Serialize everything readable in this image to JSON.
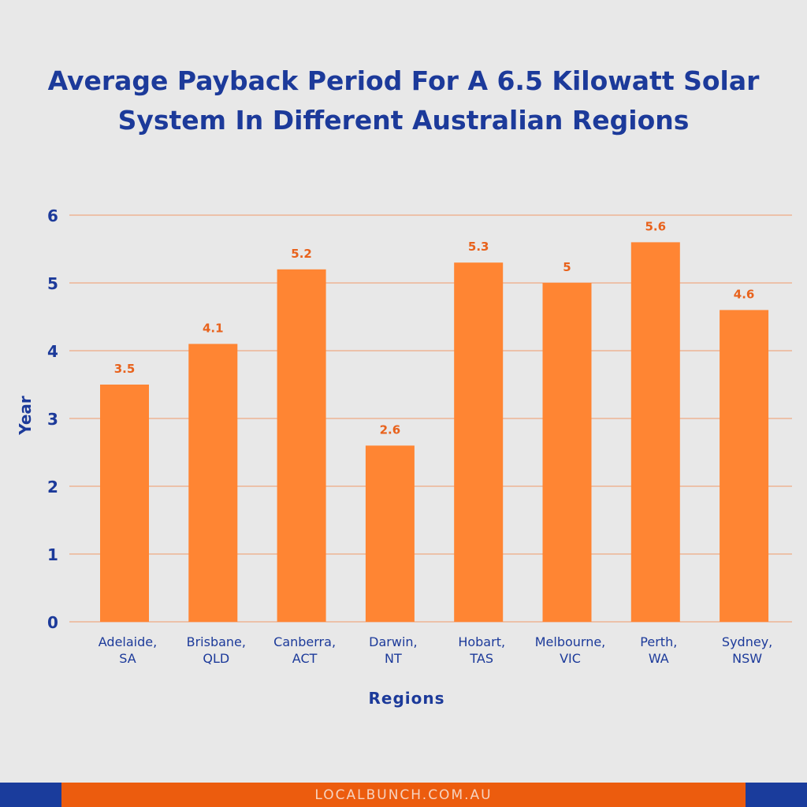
{
  "chart_data": {
    "type": "bar",
    "title": [
      "Average Payback Period For A 6.5 Kilowatt Solar",
      "System In Different Australian Regions"
    ],
    "xlabel": "Regions",
    "ylabel": "Year",
    "ylim": [
      0,
      6
    ],
    "yticks": [
      "0",
      "1",
      "2",
      "3",
      "4",
      "5",
      "6"
    ],
    "grid": true,
    "categories": [
      [
        "Adelaide,",
        "SA"
      ],
      [
        "Brisbane,",
        "QLD"
      ],
      [
        "Canberra,",
        "ACT"
      ],
      [
        "Darwin,",
        "NT"
      ],
      [
        "Hobart,",
        "TAS"
      ],
      [
        "Melbourne,",
        "VIC"
      ],
      [
        "Perth,",
        "WA"
      ],
      [
        "Sydney,",
        "NSW"
      ]
    ],
    "values": [
      3.5,
      4.1,
      5.2,
      2.6,
      5.3,
      5,
      5.6,
      4.6
    ],
    "value_labels": [
      "3.5",
      "4.1",
      "5.2",
      "2.6",
      "5.3",
      "5",
      "5.6",
      "4.6"
    ],
    "colors": {
      "bar": "#ff8533",
      "value_label": "#e8621c",
      "grid": "#ef9a6a",
      "axis_text": "#1c3a9a"
    }
  },
  "footer": {
    "text": "LOCALBUNCH.COM.AU",
    "colors": {
      "side": "#1a3c9c",
      "middle": "#ec5c0e"
    }
  }
}
